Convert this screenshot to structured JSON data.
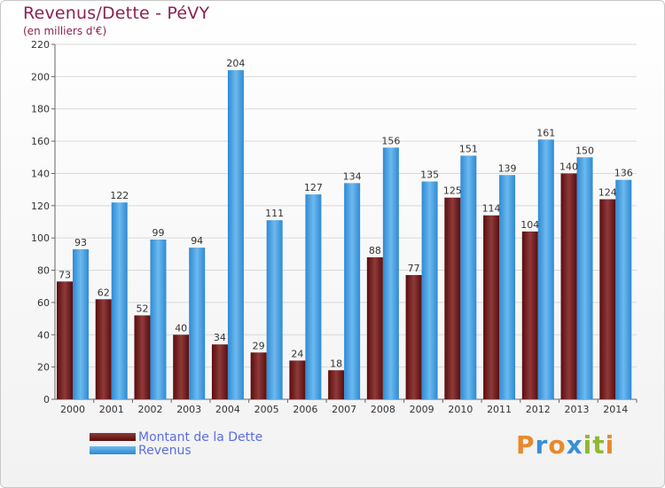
{
  "header": {
    "title": "Revenus/Dette - PéVY",
    "subtitle": "(en milliers d'€)"
  },
  "legend": {
    "debt_label": "Montant de la Dette",
    "revenue_label": "Revenus"
  },
  "logo": {
    "text": "Proxiti",
    "letters": [
      {
        "ch": "P",
        "color": "#e8892b"
      },
      {
        "ch": "r",
        "color": "#3a8fd6"
      },
      {
        "ch": "o",
        "color": "#e8892b"
      },
      {
        "ch": "x",
        "color": "#3a8fd6"
      },
      {
        "ch": "i",
        "color": "#8fb834"
      },
      {
        "ch": "t",
        "color": "#8fb834"
      },
      {
        "ch": "i",
        "color": "#e8892b"
      }
    ]
  },
  "colors": {
    "debt_top": "#8e3a3a",
    "debt_bottom": "#5a0d0d",
    "revenue_top": "#6db9ee",
    "revenue_bottom": "#2e8ad4",
    "title": "#8b2252",
    "legend_text": "#5b6ee1",
    "grid": "#d9d9d9"
  },
  "chart_data": {
    "type": "bar",
    "title": "Revenus/Dette - PéVY",
    "ylabel": "(en milliers d'€)",
    "xlabel": "",
    "ylim": [
      0,
      220
    ],
    "yticks": [
      0,
      20,
      40,
      60,
      80,
      100,
      120,
      140,
      160,
      180,
      200,
      220
    ],
    "grid": true,
    "legend_position": "bottom-left",
    "categories": [
      "2000",
      "2001",
      "2002",
      "2003",
      "2004",
      "2005",
      "2006",
      "2007",
      "2008",
      "2009",
      "2010",
      "2011",
      "2012",
      "2013",
      "2014"
    ],
    "series": [
      {
        "name": "Montant de la Dette",
        "values": [
          73,
          62,
          52,
          40,
          34,
          29,
          24,
          18,
          88,
          77,
          125,
          114,
          104,
          140,
          124
        ]
      },
      {
        "name": "Revenus",
        "values": [
          93,
          122,
          99,
          94,
          204,
          111,
          127,
          134,
          156,
          135,
          151,
          139,
          161,
          150,
          136
        ]
      }
    ]
  }
}
